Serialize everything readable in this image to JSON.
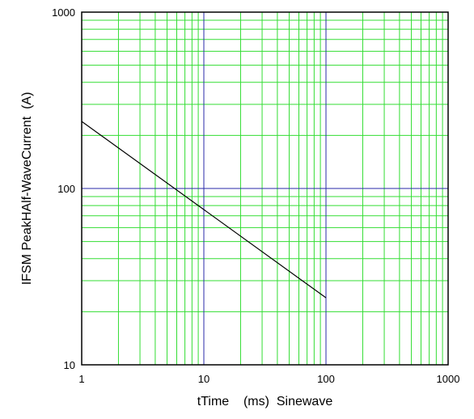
{
  "chart_data": {
    "type": "line",
    "xscale": "log",
    "yscale": "log",
    "xlim": [
      1,
      1000
    ],
    "ylim": [
      10,
      1000
    ],
    "xlabel": "tTime    (ms)  Sinewave",
    "ylabel": "IFSM PeakHAlf-WaveCurrent  (A)",
    "x_tick_labels": [
      "1",
      "10",
      "100",
      "1000"
    ],
    "y_tick_labels": [
      "10",
      "100",
      "1000"
    ],
    "grid": true,
    "colors": {
      "minor_grid": "#33dd33",
      "major_grid": "#2a2aa8",
      "line": "#000000",
      "frame": "#000000"
    },
    "series": [
      {
        "x": [
          1,
          100
        ],
        "y": [
          240,
          24
        ]
      }
    ]
  }
}
